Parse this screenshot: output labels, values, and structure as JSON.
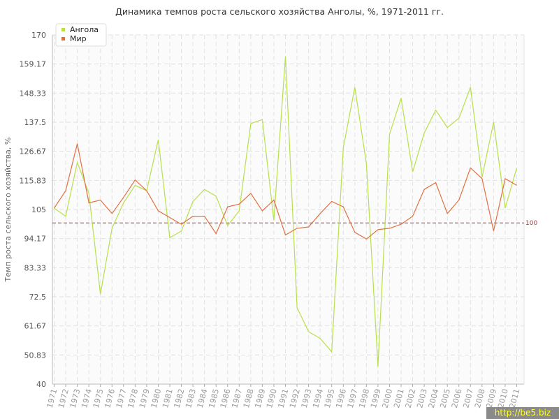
{
  "chart_data": {
    "type": "line",
    "title": "Динамика темпов роста сельского хозяйства Анголы, %, 1971-2011 гг.",
    "xlabel": "",
    "ylabel": "Темп роста сельского хозяйства, %",
    "ylim": [
      40,
      170
    ],
    "yticks": [
      "170",
      "159.17",
      "148.33",
      "137.5",
      "126.67",
      "115.83",
      "105",
      "94.17",
      "83.33",
      "72.5",
      "61.67",
      "50.83",
      "40"
    ],
    "x": [
      "1971",
      "1972",
      "1973",
      "1974",
      "1975",
      "1976",
      "1977",
      "1978",
      "1979",
      "1980",
      "1981",
      "1982",
      "1983",
      "1984",
      "1985",
      "1986",
      "1987",
      "1988",
      "1989",
      "1990",
      "1991",
      "1992",
      "1993",
      "1994",
      "1995",
      "1996",
      "1997",
      "1998",
      "1999",
      "2000",
      "2001",
      "2002",
      "2003",
      "2004",
      "2005",
      "2006",
      "2007",
      "2008",
      "2009",
      "2010",
      "2011"
    ],
    "series": [
      {
        "name": "Ангола",
        "color": "#b8e04a",
        "values": [
          105.5,
          102.5,
          122.5,
          111.0,
          73.5,
          98.0,
          107.5,
          114.0,
          112.0,
          131.0,
          94.5,
          97.0,
          108.0,
          112.5,
          110.0,
          99.0,
          104.5,
          137.0,
          138.5,
          101.0,
          162.0,
          68.5,
          59.5,
          57.0,
          52.0,
          128.0,
          150.5,
          122.0,
          46.5,
          133.0,
          146.5,
          119.0,
          133.5,
          142.0,
          135.5,
          139.0,
          150.5,
          117.0,
          137.5,
          105.5,
          120.5
        ]
      },
      {
        "name": "Мир",
        "color": "#e07040",
        "values": [
          105.5,
          112.0,
          129.5,
          107.5,
          108.5,
          103.5,
          109.5,
          116.0,
          112.0,
          104.5,
          102.0,
          99.5,
          102.5,
          102.5,
          96.0,
          106.0,
          107.0,
          111.0,
          104.5,
          108.5,
          95.5,
          98.0,
          98.5,
          103.5,
          108.0,
          106.0,
          96.5,
          94.0,
          97.5,
          98.0,
          99.5,
          102.5,
          112.5,
          115.0,
          103.5,
          108.5,
          120.5,
          116.5,
          97.0,
          116.5,
          114.0
        ]
      }
    ],
    "reference_line": {
      "value": 100,
      "label": "100",
      "color": "#a04040"
    },
    "grid": true,
    "legend": "top-left"
  },
  "watermark": "http://be5.biz"
}
